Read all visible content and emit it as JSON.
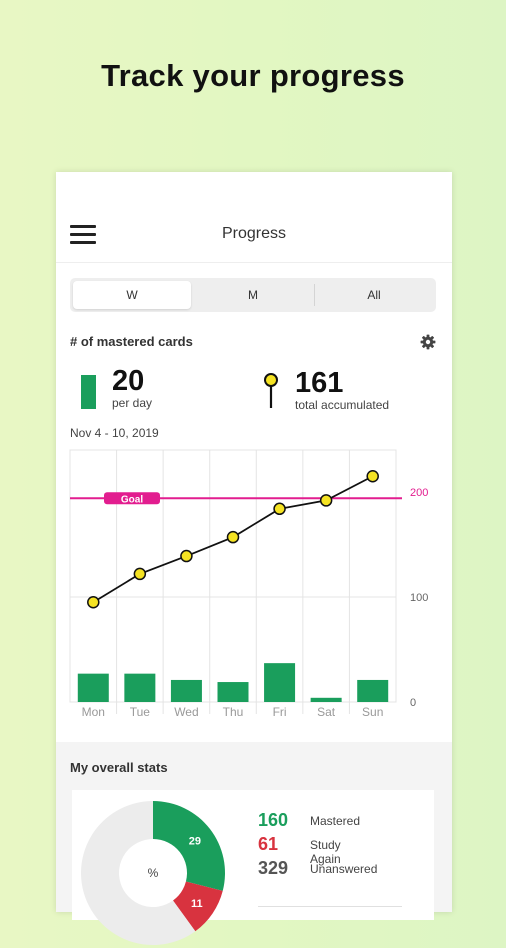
{
  "headline": "Track your progress",
  "appbar": {
    "title": "Progress",
    "menu_icon": "hamburger-menu-icon"
  },
  "period_tabs": [
    {
      "label": "W",
      "selected": true
    },
    {
      "label": "M",
      "selected": false
    },
    {
      "label": "All",
      "selected": false
    }
  ],
  "mastered_section": {
    "title": "# of mastered cards",
    "settings_icon": "gear-icon",
    "per_day_value": "20",
    "per_day_label": "per day",
    "total_value": "161",
    "total_label": "total accumulated",
    "date_range": "Nov 4 - 10, 2019"
  },
  "chart_data": {
    "type": "bar",
    "categories": [
      "Mon",
      "Tue",
      "Wed",
      "Thu",
      "Fri",
      "Sat",
      "Sun"
    ],
    "series": [
      {
        "type": "bar",
        "values": [
          27,
          27,
          21,
          19,
          37,
          4,
          21
        ]
      },
      {
        "type": "line",
        "values": [
          95,
          122,
          139,
          157,
          184,
          192,
          215
        ]
      }
    ],
    "goal": {
      "label": "Goal",
      "value": 194
    },
    "y_ticks": [
      "200",
      "100",
      "0"
    ],
    "ylim": [
      0,
      240
    ],
    "colors": {
      "bar": "#1a9e5c",
      "line": "#111111",
      "point": "#f5e323",
      "goal": "#e21d8f"
    }
  },
  "overall_stats": {
    "title": "My overall stats",
    "donut_center": "%",
    "donut_slices": [
      {
        "label": "29",
        "percent": 29,
        "color": "#1a9e5c"
      },
      {
        "label": "11",
        "percent": 11,
        "color": "#d8333f"
      },
      {
        "label": "",
        "percent": 60,
        "color": "#ececec"
      }
    ],
    "rows": [
      {
        "value": "160",
        "label": "Mastered",
        "color": "#1a9e5c"
      },
      {
        "value": "61",
        "label": "Study Again",
        "color": "#d8333f"
      },
      {
        "value": "329",
        "label": "Unanswered",
        "color": "#555555"
      }
    ]
  }
}
